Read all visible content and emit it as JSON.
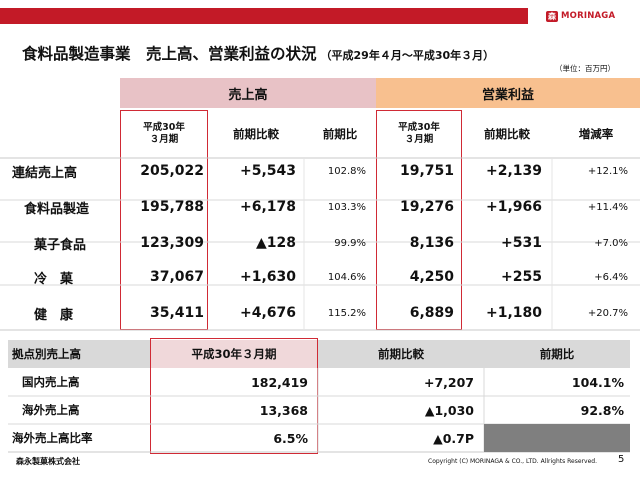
{
  "header": {
    "brand_mark": "森",
    "brand_name": "MORINAGA"
  },
  "title": {
    "main": "食料品製造事業　売上高、営業利益の状況",
    "sub": "（平成29年４月～平成30年３月）",
    "unit": "（単位：百万円）"
  },
  "table": {
    "group_sales": "売上高",
    "group_profit": "営業利益",
    "col_period_line1": "平成30年",
    "col_period_line2": "３月期",
    "col_yoy_diff": "前期比較",
    "col_yoy_ratio": "前期比",
    "col_change_rate": "増減率",
    "rows": [
      {
        "label": "連結売上高",
        "s_val": "205,022",
        "s_diff": "+5,543",
        "s_ratio": "102.8%",
        "p_val": "19,751",
        "p_diff": "+2,139",
        "p_rate": "+12.1%"
      },
      {
        "label": "食料品製造",
        "s_val": "195,788",
        "s_diff": "+6,178",
        "s_ratio": "103.3%",
        "p_val": "19,276",
        "p_diff": "+1,966",
        "p_rate": "+11.4%"
      },
      {
        "label": "菓子食品",
        "s_val": "123,309",
        "s_diff": "▲128",
        "s_ratio": "99.9%",
        "p_val": "8,136",
        "p_diff": "+531",
        "p_rate": "+7.0%"
      },
      {
        "label": "冷　菓",
        "s_val": "37,067",
        "s_diff": "+1,630",
        "s_ratio": "104.6%",
        "p_val": "4,250",
        "p_diff": "+255",
        "p_rate": "+6.4%"
      },
      {
        "label": "健　康",
        "s_val": "35,411",
        "s_diff": "+4,676",
        "s_ratio": "115.2%",
        "p_val": "6,889",
        "p_diff": "+1,180",
        "p_rate": "+20.7%"
      }
    ]
  },
  "base_table": {
    "header_label": "拠点別売上高",
    "header_period": "平成30年３月期",
    "header_diff": "前期比較",
    "header_ratio": "前期比",
    "rows": [
      {
        "label": "国内売上高",
        "val": "182,419",
        "diff": "+7,207",
        "ratio": "104.1%"
      },
      {
        "label": "海外売上高",
        "val": "13,368",
        "diff": "▲1,030",
        "ratio": "92.8%"
      },
      {
        "label": "海外売上高比率",
        "val": "6.5%",
        "diff": "▲0.7P",
        "ratio": ""
      }
    ]
  },
  "footer": {
    "company": "森永製菓株式会社",
    "copyright": "Copyright (C) MORINAGA & CO., LTD. Allrights Reserved.",
    "page": "5"
  },
  "colors": {
    "brand_red": "#c31a27",
    "sales_header": "#e8c2c6",
    "profit_header": "#f8c08f",
    "grid_gray": "#d9d9d9",
    "dark_gray": "#7f7f7f"
  }
}
